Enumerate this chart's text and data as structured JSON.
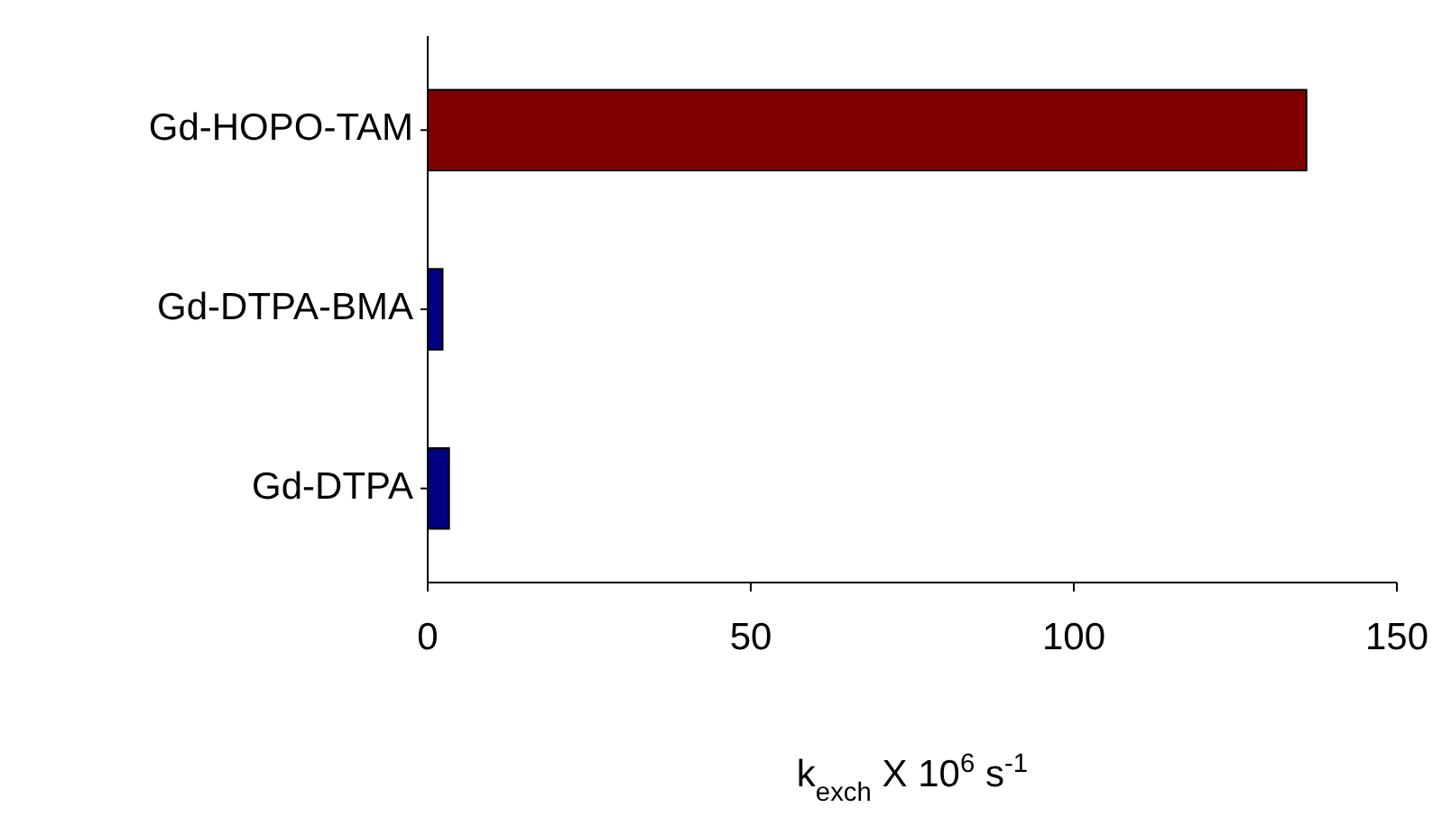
{
  "chart_data": {
    "type": "bar",
    "orientation": "horizontal",
    "categories": [
      "Gd-HOPO-TAM",
      "Gd-DTPA-BMA",
      "Gd-DTPA"
    ],
    "values": [
      136,
      2.3,
      3.3
    ],
    "colors": [
      "#800000",
      "#000080",
      "#000080"
    ],
    "xlim": [
      0,
      150
    ],
    "xticks": [
      0,
      50,
      100,
      150
    ],
    "xlabel": "k$_{exch}$ X 10$^{6}$ s$^{-1}$"
  }
}
